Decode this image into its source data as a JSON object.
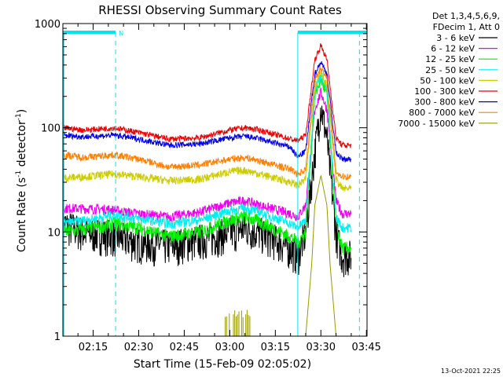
{
  "chart_data": {
    "type": "line",
    "title": "RHESSI Observing Summary Count Rates",
    "xlabel": "Start Time (15-Feb-09 02:05:02)",
    "ylabel_main": "Count Rate (s",
    "ylabel_sup1": "-1",
    "ylabel_mid": " detector",
    "ylabel_sup2": "-1",
    "ylabel_end": ")",
    "y_scale": "log",
    "ylim": [
      1,
      1000
    ],
    "xlim_minutes": [
      5.03,
      105.2
    ],
    "x_ticks": [
      {
        "label": "02:15",
        "minutes": 15
      },
      {
        "label": "02:30",
        "minutes": 30
      },
      {
        "label": "02:45",
        "minutes": 45
      },
      {
        "label": "03:00",
        "minutes": 60
      },
      {
        "label": "03:15",
        "minutes": 75
      },
      {
        "label": "03:30",
        "minutes": 90
      },
      {
        "label": "03:45",
        "minutes": 105
      }
    ],
    "y_ticks": [
      {
        "label": "1",
        "value": 1
      },
      {
        "label": "10",
        "value": 10
      },
      {
        "label": "100",
        "value": 100
      },
      {
        "label": "1000",
        "value": 1000
      }
    ],
    "legend_header": [
      "Det 1,3,4,5,6,9,",
      "FDecim 1, Att 0"
    ],
    "legend_position": "right",
    "date_stamp": "13-Oct-2021 22:25",
    "night_marker_label": "N",
    "colors": {
      "axis": "#000000",
      "night": "#00e5ee",
      "saa": "#00e5ee"
    },
    "intervals": {
      "night_bars": [
        [
          5.03,
          22.4
        ],
        [
          82.4,
          105.2
        ]
      ],
      "boundaries_minutes": [
        22.4,
        82.4,
        102.7
      ],
      "boundary_solid_minutes": [
        82.4
      ],
      "night_label_minutes": 22.4
    },
    "series": [
      {
        "name": "3 - 6 keV",
        "label": "3 - 6 keV",
        "color": "#000000",
        "base": 9.5,
        "noise": 0.18,
        "points": [
          [
            5.03,
            12
          ],
          [
            12,
            10
          ],
          [
            20,
            9.5
          ],
          [
            30,
            8
          ],
          [
            40,
            7.5
          ],
          [
            50,
            8.5
          ],
          [
            60,
            10
          ],
          [
            65,
            11
          ],
          [
            70,
            10
          ],
          [
            75,
            8.5
          ],
          [
            80,
            7
          ],
          [
            82.4,
            6
          ],
          [
            85,
            10
          ],
          [
            88,
            60
          ],
          [
            90,
            165
          ],
          [
            92,
            80
          ],
          [
            95,
            10
          ],
          [
            97,
            6
          ],
          [
            100,
            6
          ]
        ]
      },
      {
        "name": "6 - 12 keV",
        "label": "6 - 12 keV",
        "color": "#ee00ee",
        "base": 17,
        "noise": 0.05,
        "points": [
          [
            5.03,
            17
          ],
          [
            20,
            16.5
          ],
          [
            30,
            15
          ],
          [
            40,
            14
          ],
          [
            50,
            15.5
          ],
          [
            60,
            19
          ],
          [
            65,
            20
          ],
          [
            70,
            18
          ],
          [
            80,
            15
          ],
          [
            82.4,
            14
          ],
          [
            85,
            18
          ],
          [
            88,
            150
          ],
          [
            90,
            220
          ],
          [
            92,
            150
          ],
          [
            95,
            20
          ],
          [
            97,
            15
          ],
          [
            100,
            15
          ]
        ]
      },
      {
        "name": "12 - 25 keV",
        "label": "12 - 25 keV",
        "color": "#00ee00",
        "base": 11,
        "noise": 0.07,
        "points": [
          [
            5.03,
            10
          ],
          [
            12,
            10.5
          ],
          [
            22,
            12
          ],
          [
            30,
            11
          ],
          [
            40,
            9
          ],
          [
            50,
            10
          ],
          [
            60,
            13
          ],
          [
            65,
            14
          ],
          [
            70,
            12.5
          ],
          [
            80,
            9
          ],
          [
            82.4,
            8
          ],
          [
            85,
            10
          ],
          [
            88,
            200
          ],
          [
            90,
            300
          ],
          [
            92,
            200
          ],
          [
            95,
            12
          ],
          [
            97,
            7
          ],
          [
            100,
            7
          ]
        ]
      },
      {
        "name": "25 - 50 keV",
        "label": "25 - 50 keV",
        "color": "#00eeee",
        "base": 14,
        "noise": 0.05,
        "points": [
          [
            5.03,
            12
          ],
          [
            12,
            13
          ],
          [
            22,
            14.5
          ],
          [
            30,
            13.5
          ],
          [
            40,
            12
          ],
          [
            50,
            13
          ],
          [
            60,
            16
          ],
          [
            65,
            17
          ],
          [
            70,
            15.5
          ],
          [
            80,
            12
          ],
          [
            82.4,
            11
          ],
          [
            85,
            13
          ],
          [
            88,
            230
          ],
          [
            90,
            330
          ],
          [
            92,
            230
          ],
          [
            95,
            14
          ],
          [
            97,
            11
          ],
          [
            100,
            11
          ]
        ]
      },
      {
        "name": "50 - 100 keV",
        "label": "50 - 100 keV",
        "color": "#cccc00",
        "base": 33,
        "noise": 0.04,
        "points": [
          [
            5.03,
            33
          ],
          [
            12,
            34
          ],
          [
            22,
            36
          ],
          [
            30,
            34
          ],
          [
            40,
            31
          ],
          [
            50,
            32
          ],
          [
            60,
            38
          ],
          [
            65,
            39
          ],
          [
            70,
            36
          ],
          [
            80,
            30
          ],
          [
            82.4,
            28
          ],
          [
            85,
            32
          ],
          [
            88,
            250
          ],
          [
            90,
            350
          ],
          [
            92,
            250
          ],
          [
            95,
            32
          ],
          [
            97,
            26
          ],
          [
            100,
            26
          ]
        ]
      },
      {
        "name": "100 - 300 keV",
        "label": "100 - 300 keV",
        "color": "#ee0000",
        "base": 90,
        "noise": 0.03,
        "points": [
          [
            5.03,
            100
          ],
          [
            12,
            95
          ],
          [
            22,
            100
          ],
          [
            30,
            90
          ],
          [
            40,
            78
          ],
          [
            50,
            80
          ],
          [
            60,
            95
          ],
          [
            65,
            100
          ],
          [
            70,
            95
          ],
          [
            80,
            78
          ],
          [
            82.4,
            75
          ],
          [
            85,
            85
          ],
          [
            88,
            450
          ],
          [
            90,
            620
          ],
          [
            92,
            450
          ],
          [
            95,
            80
          ],
          [
            97,
            68
          ],
          [
            100,
            68
          ]
        ]
      },
      {
        "name": "300 - 800 keV",
        "label": "300 - 800 keV",
        "color": "#0000ee",
        "base": 78,
        "noise": 0.03,
        "points": [
          [
            5.03,
            85
          ],
          [
            12,
            82
          ],
          [
            22,
            85
          ],
          [
            30,
            78
          ],
          [
            40,
            68
          ],
          [
            50,
            70
          ],
          [
            60,
            80
          ],
          [
            65,
            83
          ],
          [
            70,
            78
          ],
          [
            80,
            65
          ],
          [
            82.4,
            52
          ],
          [
            85,
            60
          ],
          [
            88,
            330
          ],
          [
            90,
            430
          ],
          [
            92,
            330
          ],
          [
            95,
            58
          ],
          [
            97,
            50
          ],
          [
            100,
            50
          ]
        ]
      },
      {
        "name": "800 - 7000 keV",
        "label": "800 - 7000 keV",
        "color": "#ff7f00",
        "base": 50,
        "noise": 0.035,
        "points": [
          [
            5.03,
            55
          ],
          [
            12,
            52
          ],
          [
            22,
            55
          ],
          [
            30,
            50
          ],
          [
            40,
            42
          ],
          [
            50,
            44
          ],
          [
            60,
            50
          ],
          [
            65,
            52
          ],
          [
            70,
            48
          ],
          [
            80,
            40
          ],
          [
            82.4,
            36
          ],
          [
            85,
            40
          ],
          [
            88,
            290
          ],
          [
            90,
            380
          ],
          [
            92,
            290
          ],
          [
            95,
            38
          ],
          [
            97,
            34
          ],
          [
            100,
            34
          ]
        ]
      },
      {
        "name": "7000 - 15000 keV",
        "label": "7000 - 15000 keV",
        "color": "#999900",
        "base": 1,
        "noise": 0,
        "points": [
          [
            85,
            1
          ],
          [
            87,
            5
          ],
          [
            88,
            18
          ],
          [
            90,
            35
          ],
          [
            92,
            18
          ],
          [
            93,
            5
          ],
          [
            95,
            1
          ]
        ],
        "spikes_range": [
          58.5,
          67
        ]
      }
    ]
  }
}
